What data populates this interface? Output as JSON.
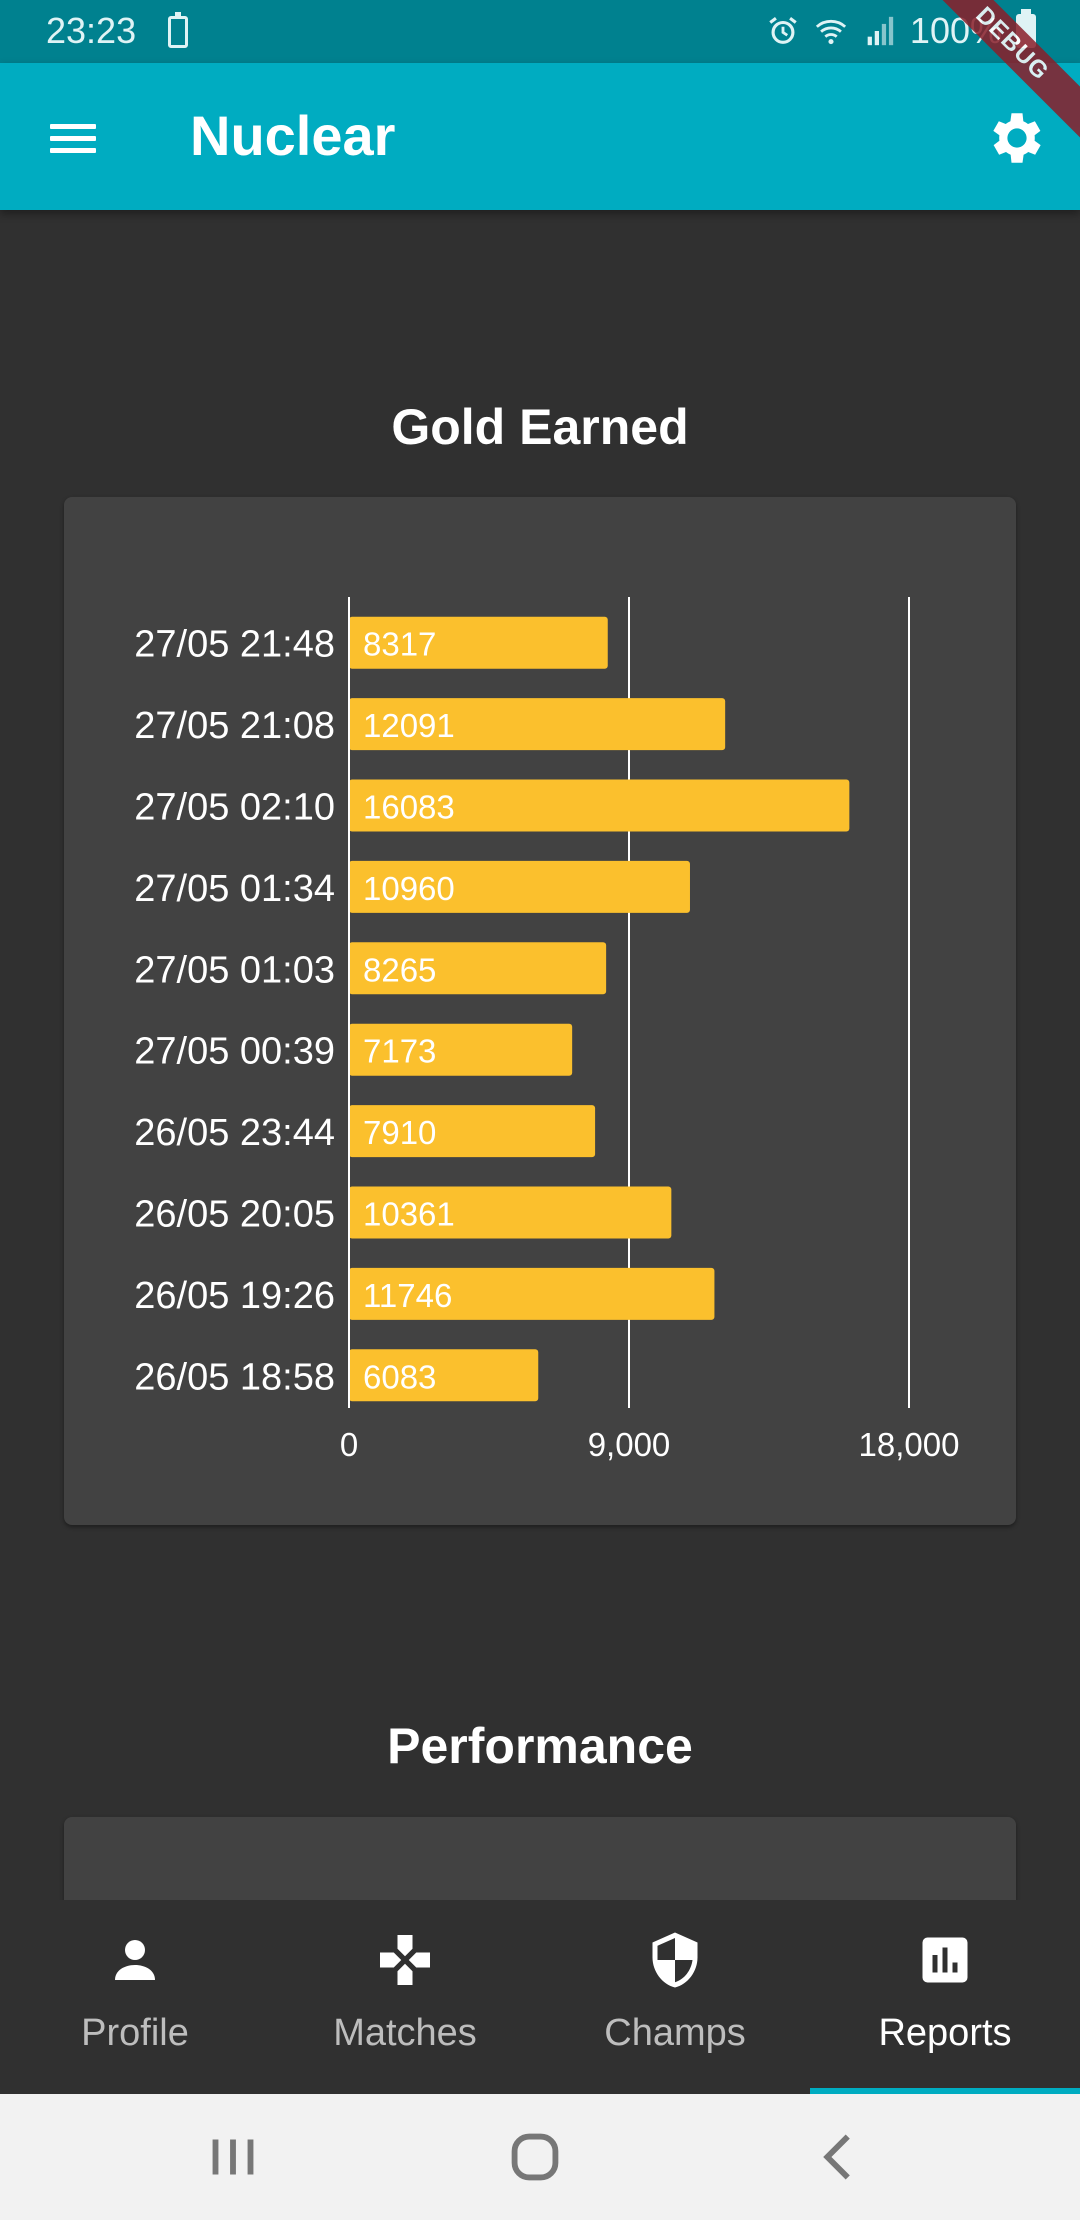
{
  "status_bar": {
    "time": "23:23",
    "battery_percent": "100%",
    "icons": [
      "battery-saver-icon",
      "alarm-icon",
      "wifi-icon",
      "signal-icon",
      "battery-icon"
    ]
  },
  "app_bar": {
    "title": "Nuclear",
    "menu_icon": "menu-icon",
    "settings_icon": "gear-icon"
  },
  "debug_banner": "DEBUG",
  "gold_section": {
    "title": "Gold Earned"
  },
  "performance_section": {
    "title": "Performance"
  },
  "chart_data": {
    "type": "bar",
    "orientation": "horizontal",
    "categories": [
      "27/05 21:48",
      "27/05 21:08",
      "27/05 02:10",
      "27/05 01:34",
      "27/05 01:03",
      "27/05 00:39",
      "26/05 23:44",
      "26/05 20:05",
      "26/05 19:26",
      "26/05 18:58"
    ],
    "values": [
      8317,
      12091,
      16083,
      10960,
      8265,
      7173,
      7910,
      10361,
      11746,
      6083
    ],
    "title": "",
    "xlabel": "",
    "ylabel": "",
    "xlim": [
      0,
      18000
    ],
    "tick_values": [
      0,
      9000,
      18000
    ],
    "tick_labels": [
      "0",
      "9,000",
      "18,000"
    ],
    "bar_color": "#fbc02d",
    "grid": true,
    "data_labels": true
  },
  "bottom_nav": {
    "items": [
      {
        "label": "Profile",
        "icon": "person-icon",
        "active": false
      },
      {
        "label": "Matches",
        "icon": "gamepad-icon",
        "active": false
      },
      {
        "label": "Champs",
        "icon": "shield-icon",
        "active": false
      },
      {
        "label": "Reports",
        "icon": "bar-chart-icon",
        "active": true
      }
    ]
  },
  "system_nav": {
    "buttons": [
      "recent-apps-icon",
      "home-icon",
      "back-icon"
    ]
  },
  "colors": {
    "primary": "#00acc1",
    "primary_dark": "#00818f",
    "background": "#303030",
    "card": "#424242",
    "bar": "#fbc02d"
  }
}
